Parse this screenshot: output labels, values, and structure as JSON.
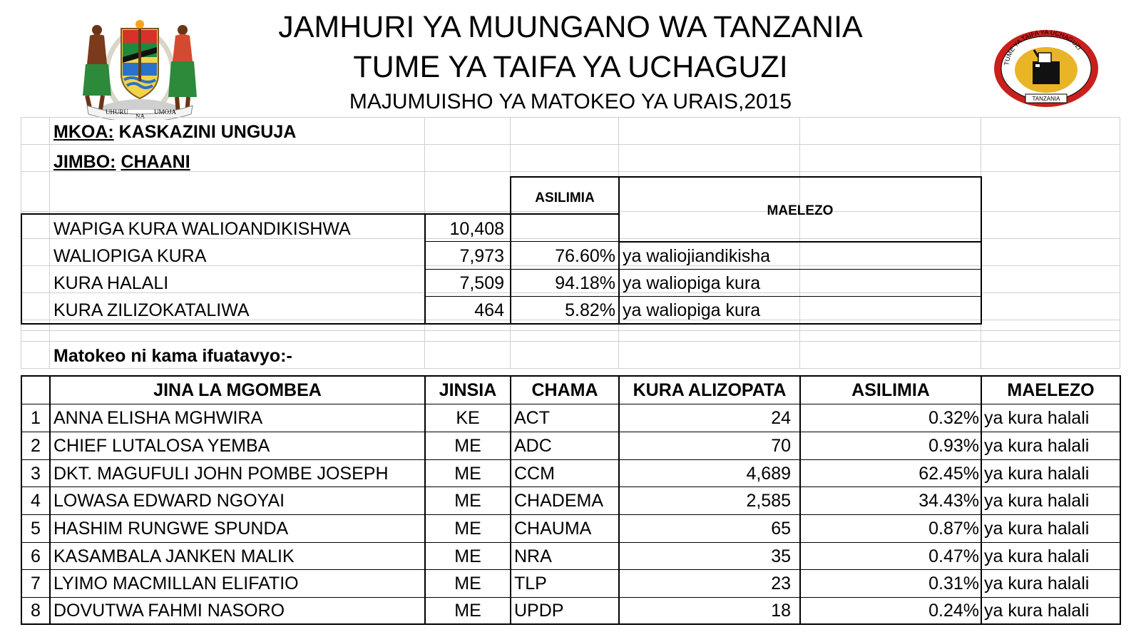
{
  "header": {
    "line1": "JAMHURI YA MUUNGANO WA TANZANIA",
    "line2": "TUME YA TAIFA YA UCHAGUZI",
    "line3": "MAJUMUISHO YA MATOKEO YA URAIS,2015",
    "emblem_motto_left": "UHURU",
    "emblem_motto_mid": "NA",
    "emblem_motto_right": "UMOJA",
    "nec_logo_top": "TUME YA TAIFA YA UCHAGUZI",
    "nec_logo_bottom": "TANZANIA"
  },
  "location": {
    "region_label": "MKOA:",
    "region_value": "KASKAZINI UNGUJA",
    "constituency_label": "JIMBO:",
    "constituency_value": "CHAANI"
  },
  "summary": {
    "col_percent": "ASILIMIA",
    "col_notes": "MAELEZO",
    "rows": [
      {
        "label": "WAPIGA KURA WALIOANDIKISHWA",
        "value": "10,408",
        "percent": "",
        "note": ""
      },
      {
        "label": "WALIOPIGA KURA",
        "value": "7,973",
        "percent": "76.60%",
        "note": "ya waliojiandikisha"
      },
      {
        "label": "KURA HALALI",
        "value": "7,509",
        "percent": "94.18%",
        "note": "ya waliopiga kura"
      },
      {
        "label": "KURA ZILIZOKATALIWA",
        "value": "464",
        "percent": "5.82%",
        "note": "ya waliopiga kura"
      }
    ]
  },
  "results_intro": "Matokeo ni kama ifuatavyo:-",
  "results": {
    "columns": [
      "JINA LA MGOMBEA",
      "JINSIA",
      "CHAMA",
      "KURA ALIZOPATA",
      "ASILIMIA",
      "MAELEZO"
    ],
    "rows": [
      {
        "no": "1",
        "name": "ANNA ELISHA MGHWIRA",
        "gender": "KE",
        "party": "ACT",
        "votes": "24",
        "percent": "0.32%",
        "note": "ya kura halali"
      },
      {
        "no": "2",
        "name": "CHIEF LUTALOSA YEMBA",
        "gender": "ME",
        "party": "ADC",
        "votes": "70",
        "percent": "0.93%",
        "note": "ya kura halali"
      },
      {
        "no": "3",
        "name": "DKT. MAGUFULI JOHN POMBE JOSEPH",
        "gender": "ME",
        "party": "CCM",
        "votes": "4,689",
        "percent": "62.45%",
        "note": "ya kura halali"
      },
      {
        "no": "4",
        "name": "LOWASA EDWARD NGOYAI",
        "gender": "ME",
        "party": "CHADEMA",
        "votes": "2,585",
        "percent": "34.43%",
        "note": "ya kura halali"
      },
      {
        "no": "5",
        "name": "HASHIM RUNGWE SPUNDA",
        "gender": "ME",
        "party": "CHAUMA",
        "votes": "65",
        "percent": "0.87%",
        "note": "ya kura halali"
      },
      {
        "no": "6",
        "name": "KASAMBALA JANKEN MALIK",
        "gender": "ME",
        "party": "NRA",
        "votes": "35",
        "percent": "0.47%",
        "note": "ya kura halali"
      },
      {
        "no": "7",
        "name": "LYIMO MACMILLAN ELIFATIO",
        "gender": "ME",
        "party": "TLP",
        "votes": "23",
        "percent": "0.31%",
        "note": "ya kura halali"
      },
      {
        "no": "8",
        "name": "DOVUTWA FAHMI NASORO",
        "gender": "ME",
        "party": "UPDP",
        "votes": "18",
        "percent": "0.24%",
        "note": "ya kura halali"
      }
    ]
  },
  "colors": {
    "nec_red": "#c8201c",
    "nec_gold": "#e9b526",
    "gridline": "#d0d0d0"
  }
}
